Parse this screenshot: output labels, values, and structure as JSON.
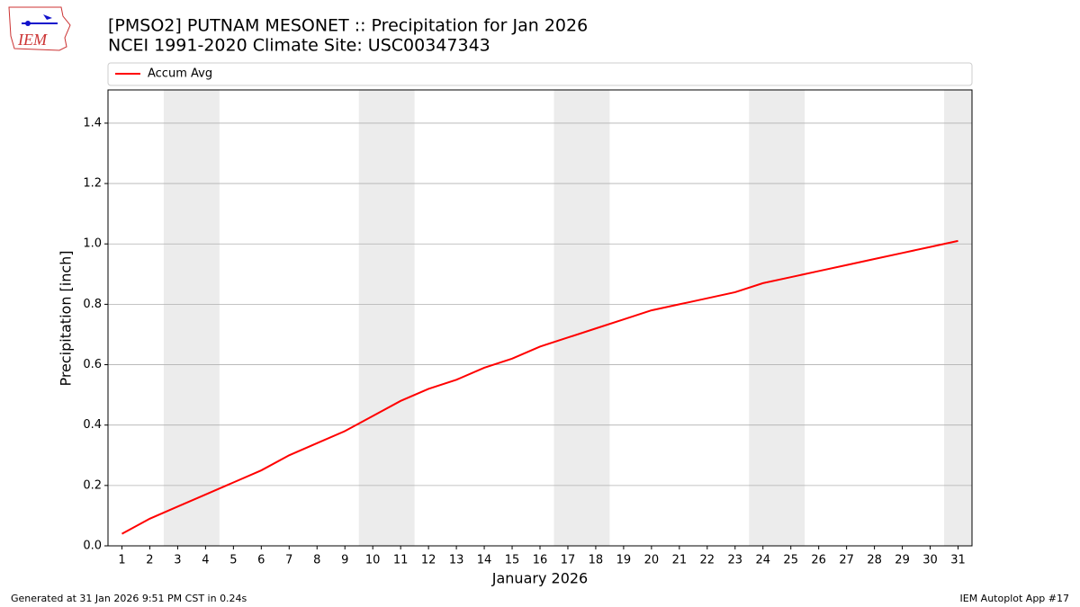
{
  "logo_text": "IEM",
  "footer_left": "Generated at 31 Jan 2026 9:51 PM CST in 0.24s",
  "footer_right": "IEM Autoplot App #17",
  "chart_data": {
    "type": "line",
    "title": "[PMSO2] PUTNAM MESONET :: Precipitation for Jan 2026",
    "subtitle": "NCEI 1991-2020 Climate Site: USC00347343",
    "x_label": "January 2026",
    "y_label": "Precipitation [inch]",
    "x": [
      1,
      2,
      3,
      4,
      5,
      6,
      7,
      8,
      9,
      10,
      11,
      12,
      13,
      14,
      15,
      16,
      17,
      18,
      19,
      20,
      21,
      22,
      23,
      24,
      25,
      26,
      27,
      28,
      29,
      30,
      31
    ],
    "series": [
      {
        "name": "Accum Avg",
        "color": "#ff0000",
        "values": [
          0.04,
          0.09,
          0.13,
          0.17,
          0.21,
          0.25,
          0.3,
          0.34,
          0.38,
          0.43,
          0.48,
          0.52,
          0.55,
          0.59,
          0.62,
          0.66,
          0.69,
          0.72,
          0.75,
          0.78,
          0.8,
          0.82,
          0.84,
          0.87,
          0.89,
          0.91,
          0.93,
          0.95,
          0.97,
          0.99,
          1.01
        ]
      }
    ],
    "shaded_ranges": [
      [
        2.5,
        4.5
      ],
      [
        9.5,
        11.5
      ],
      [
        16.5,
        18.5
      ],
      [
        23.5,
        25.5
      ],
      [
        30.5,
        32.5
      ]
    ],
    "shade_color": "#ececec",
    "xlim": [
      0.5,
      31.5
    ],
    "ylim": [
      0,
      1.51
    ],
    "xticks": [
      1,
      2,
      3,
      4,
      5,
      6,
      7,
      8,
      9,
      10,
      11,
      12,
      13,
      14,
      15,
      16,
      17,
      18,
      19,
      20,
      21,
      22,
      23,
      24,
      25,
      26,
      27,
      28,
      29,
      30,
      31
    ],
    "yticks": [
      {
        "value": 0,
        "label": "0.0"
      },
      {
        "value": 0.2,
        "label": "0.2"
      },
      {
        "value": 0.4,
        "label": "0.4"
      },
      {
        "value": 0.6,
        "label": "0.6"
      },
      {
        "value": 0.8,
        "label": "0.8"
      },
      {
        "value": 1.0,
        "label": "1.0"
      },
      {
        "value": 1.2,
        "label": "1.2"
      },
      {
        "value": 1.4,
        "label": "1.4"
      }
    ],
    "grid": "y",
    "legend": "top"
  }
}
